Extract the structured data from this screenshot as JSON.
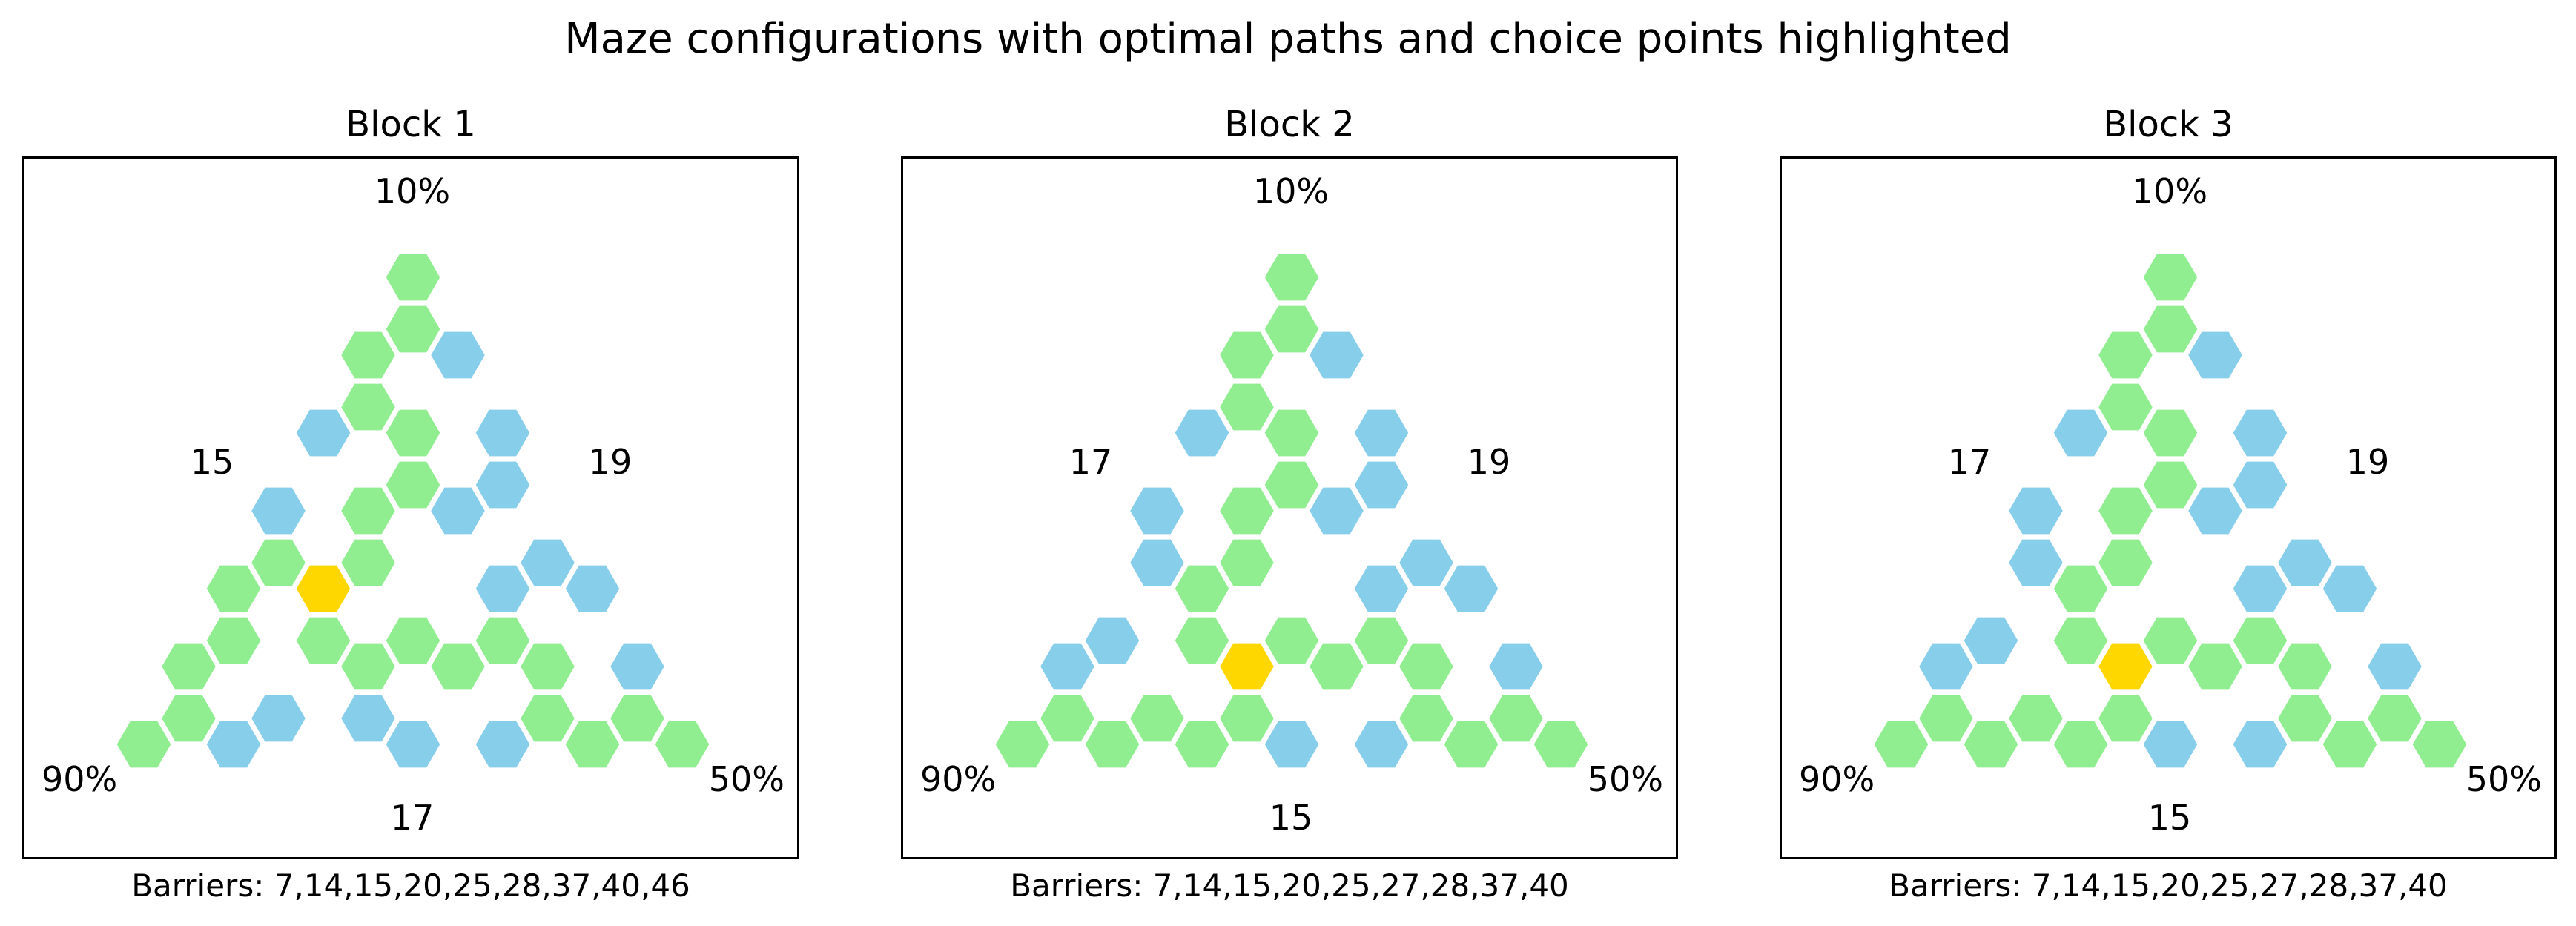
{
  "title": "Maze configurations with optimal paths and choice points highlighted",
  "colors": {
    "path": "#90EE90",
    "barrier": "#87CEEB",
    "choice": "#FFD700",
    "edge": "#ffffff",
    "frame": "#000000"
  },
  "blocks": [
    {
      "title": "Block 1",
      "barriers_caption": "Barriers: 7,14,15,20,25,28,37,40,46",
      "labels": {
        "top": "10%",
        "bottom_left": "90%",
        "bottom_right": "50%",
        "left": "15",
        "right": "19",
        "bottom": "17"
      }
    },
    {
      "title": "Block 2",
      "barriers_caption": "Barriers: 7,14,15,20,25,27,28,37,40",
      "labels": {
        "top": "10%",
        "bottom_left": "90%",
        "bottom_right": "50%",
        "left": "17",
        "right": "19",
        "bottom": "15"
      }
    },
    {
      "title": "Block 3",
      "barriers_caption": "Barriers: 7,14,15,20,25,27,28,37,40",
      "labels": {
        "top": "10%",
        "bottom_left": "90%",
        "bottom_right": "50%",
        "left": "17",
        "right": "19",
        "bottom": "15"
      }
    }
  ]
}
